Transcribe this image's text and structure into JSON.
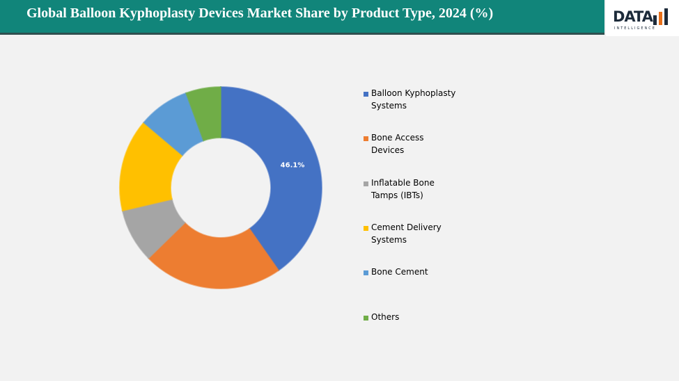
{
  "header": {
    "logo": "DATA",
    "logo_sub": "INTELLIGENCE"
  },
  "chart_data": {
    "type": "donut",
    "title": "Global Balloon Kyphoplasty Devices Market Share by Product Type, 2024 (%)",
    "categories": [
      "Balloon Kyphoplasty Systems",
      "Bone Access Devices",
      "Inflatable Bone Tamps (IBTs)",
      "Cement Delivery Systems",
      "Bone Cement",
      "Others"
    ],
    "values": [
      46.1,
      25.6,
      9.9,
      17,
      9.4,
      6.4
    ],
    "value_labels": [
      "46.1%",
      null,
      null,
      null,
      null,
      null
    ],
    "colors": [
      "#4472c4",
      "#ed7d31",
      "#a5a5a5",
      "#ffc000",
      "#5b9bd5",
      "#70ad47"
    ],
    "legend": "right"
  }
}
